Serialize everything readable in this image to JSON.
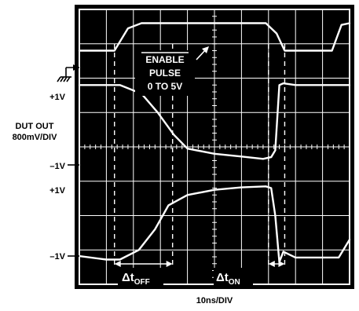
{
  "chart_data": {
    "type": "line",
    "title": "",
    "xlabel": "10ns/DIV",
    "grid": true,
    "labels": {
      "plus1v_top": "+1V",
      "dut_out": "DUT OUT",
      "scale": "800mV/DIV",
      "minus1v_mid": "–1V",
      "plus1v_low": "+1V",
      "minus1v_bottom": "–1V"
    },
    "annotations": {
      "enable_pulse_line1": "ENABLE",
      "enable_pulse_line2": "PULSE",
      "enable_pulse_line3": "0 TO 5V",
      "delta_t_off_symbol": "Δt",
      "delta_t_off_sub": "OFF",
      "delta_t_on_symbol": "Δt",
      "delta_t_on_sub": "ON"
    },
    "x_divisions": 10,
    "y_divisions": 8,
    "series": [
      {
        "x": [
          0,
          1.3,
          1.8,
          2.3,
          6.9,
          7.3,
          7.6,
          8.1,
          9.35,
          9.7,
          10
        ],
        "y": [
          6.8,
          6.8,
          7.45,
          7.6,
          7.6,
          7.3,
          6.8,
          6.8,
          6.8,
          7.55,
          7.6
        ]
      },
      {
        "x": [
          0,
          1.5,
          2.3,
          2.9,
          3.5,
          4.0,
          5.0,
          6.0,
          6.8,
          7.1,
          7.25,
          7.4,
          7.55,
          8.0,
          9.0,
          9.5,
          10
        ],
        "y": [
          5.8,
          5.8,
          5.55,
          5.0,
          4.35,
          3.95,
          3.8,
          3.72,
          3.65,
          3.7,
          3.9,
          5.8,
          5.85,
          5.8,
          5.8,
          5.8,
          5.8
        ]
      },
      {
        "x": [
          0,
          1.0,
          1.5,
          2.2,
          2.8,
          3.3,
          4.0,
          5.0,
          6.0,
          6.9,
          7.1,
          7.25,
          7.4,
          7.55,
          8.0,
          9.0,
          9.6,
          10
        ],
        "y": [
          0.82,
          0.72,
          0.72,
          1.0,
          1.6,
          2.3,
          2.6,
          2.75,
          2.82,
          2.85,
          2.8,
          2.0,
          0.65,
          0.95,
          0.78,
          0.78,
          0.78,
          1.3
        ]
      }
    ]
  }
}
